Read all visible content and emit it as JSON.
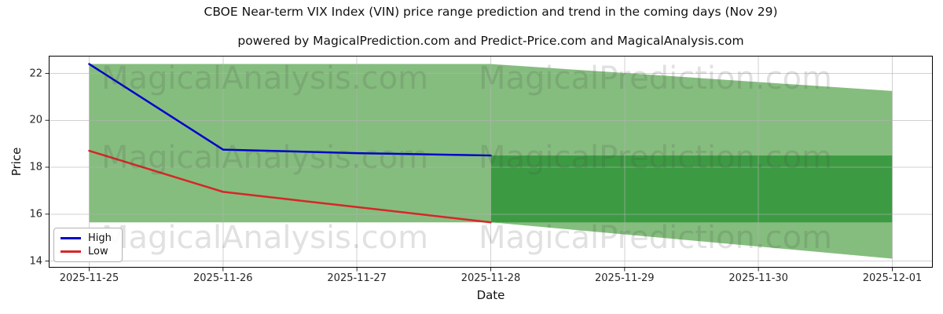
{
  "figure": {
    "title": "CBOE Near-term VIX Index (VIN) price range prediction and trend in the coming days (Nov 29)",
    "subtitle": "powered by MagicalPrediction.com and Predict-Price.com and MagicalAnalysis.com",
    "background": "#ffffff"
  },
  "watermarks": {
    "left": "MagicalAnalysis.com",
    "right": "MagicalPrediction.com"
  },
  "legend": {
    "items": [
      {
        "label": "High",
        "color": "#0000cd"
      },
      {
        "label": "Low",
        "color": "#d62728"
      }
    ]
  },
  "colors": {
    "high": "#0000cd",
    "low": "#d62728",
    "band_light": "#85bd7e",
    "band_dark": "#3c9b42",
    "grid": "rgba(178,178,178,0.6)",
    "tick": "#262626",
    "spine": "#000000"
  },
  "chart_data": {
    "type": "line",
    "title": "CBOE Near-term VIX Index (VIN) price range prediction and trend in the coming days (Nov 29)",
    "subtitle": "powered by MagicalPrediction.com and Predict-Price.com and MagicalAnalysis.com",
    "xlabel": "Date",
    "ylabel": "Price",
    "categories": [
      "2025-11-25",
      "2025-11-26",
      "2025-11-27",
      "2025-11-28",
      "2025-11-29",
      "2025-11-30",
      "2025-12-01"
    ],
    "y_ticks": [
      14,
      16,
      18,
      20,
      22
    ],
    "ylim": [
      13.7,
      22.75
    ],
    "grid": true,
    "legend_position": "lower left",
    "series": [
      {
        "name": "High",
        "color_key": "high",
        "x": [
          "2025-11-25",
          "2025-11-26",
          "2025-11-27",
          "2025-11-28"
        ],
        "values": [
          22.4,
          18.75,
          18.6,
          18.5
        ]
      },
      {
        "name": "Low",
        "color_key": "low",
        "x": [
          "2025-11-25",
          "2025-11-26",
          "2025-11-27",
          "2025-11-28"
        ],
        "values": [
          18.7,
          16.95,
          16.3,
          15.65
        ]
      }
    ],
    "bands": [
      {
        "name": "observed-range-band",
        "color_key": "band_light",
        "points": [
          [
            "2025-11-25",
            22.4
          ],
          [
            "2025-11-28",
            22.4
          ],
          [
            "2025-11-28",
            15.65
          ],
          [
            "2025-11-25",
            15.65
          ]
        ]
      },
      {
        "name": "forecast-funnel-band",
        "color_key": "band_light",
        "points": [
          [
            "2025-11-28",
            22.4
          ],
          [
            "2025-12-01",
            21.25
          ],
          [
            "2025-12-01",
            14.1
          ],
          [
            "2025-11-28",
            15.65
          ]
        ]
      },
      {
        "name": "forecast-core-band",
        "color_key": "band_dark",
        "points": [
          [
            "2025-11-28",
            18.5
          ],
          [
            "2025-12-01",
            18.5
          ],
          [
            "2025-12-01",
            15.65
          ],
          [
            "2025-11-28",
            15.65
          ]
        ]
      }
    ]
  }
}
